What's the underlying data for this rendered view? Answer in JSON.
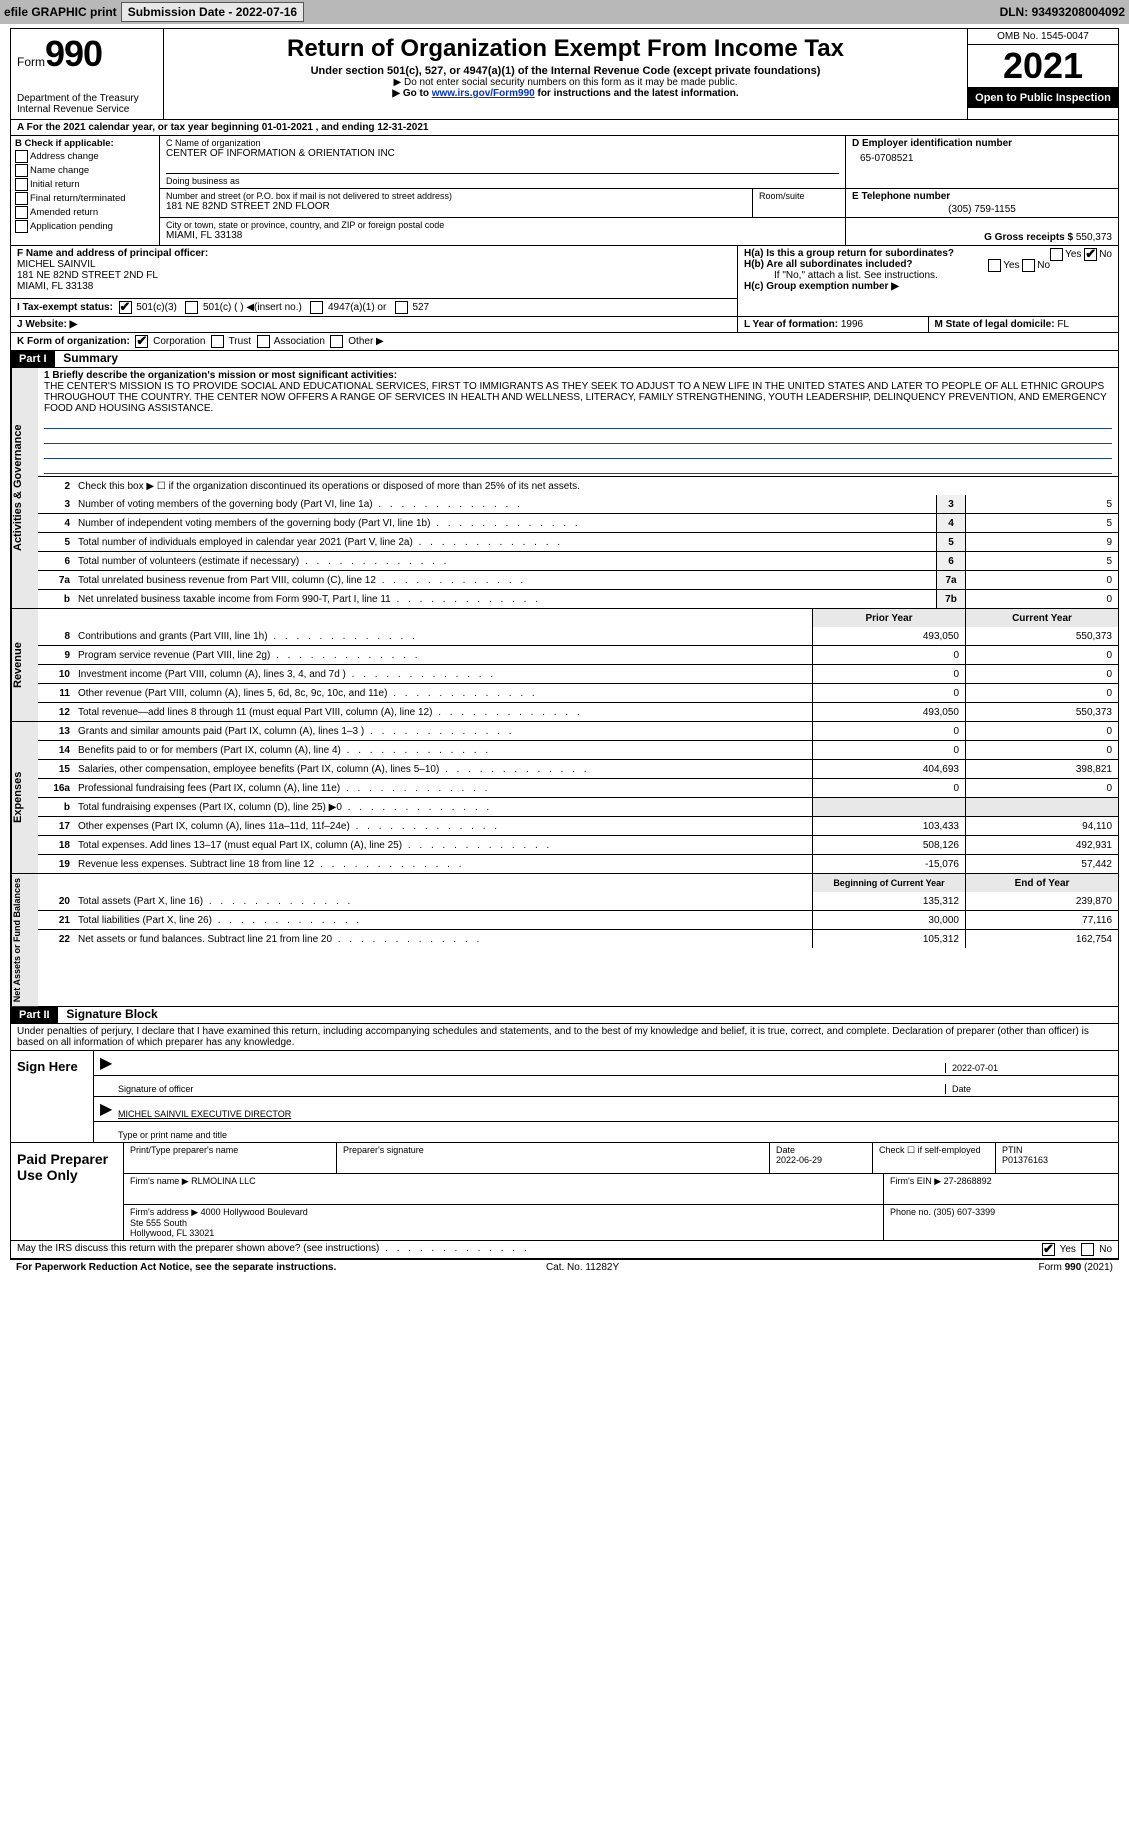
{
  "topbar": {
    "efile": "efile GRAPHIC print",
    "submission_label": "Submission Date - ",
    "submission_date": "2022-07-16",
    "dln_label": "DLN: ",
    "dln": "93493208004092"
  },
  "header": {
    "form_label": "Form",
    "form_no": "990",
    "dept": "Department of the Treasury\nInternal Revenue Service",
    "title": "Return of Organization Exempt From Income Tax",
    "subtitle": "Under section 501(c), 527, or 4947(a)(1) of the Internal Revenue Code (except private foundations)",
    "note1": "▶ Do not enter social security numbers on this form as it may be made public.",
    "note2_pre": "▶ Go to ",
    "note2_link": "www.irs.gov/Form990",
    "note2_post": " for instructions and the latest information.",
    "omb": "OMB No. 1545-0047",
    "year": "2021",
    "open": "Open to Public Inspection"
  },
  "row_a": "A For the 2021 calendar year, or tax year beginning 01-01-2021    , and ending 12-31-2021",
  "col_b": {
    "label": "B Check if applicable:",
    "items": [
      "Address change",
      "Name change",
      "Initial return",
      "Final return/terminated",
      "Amended return",
      "Application pending"
    ]
  },
  "col_c": {
    "name_lbl": "C Name of organization",
    "name": "CENTER OF INFORMATION & ORIENTATION INC",
    "dba_lbl": "Doing business as",
    "dba": "",
    "addr_lbl": "Number and street (or P.O. box if mail is not delivered to street address)",
    "addr": "181 NE 82ND STREET 2ND FLOOR",
    "room_lbl": "Room/suite",
    "city_lbl": "City or town, state or province, country, and ZIP or foreign postal code",
    "city": "MIAMI, FL  33138"
  },
  "col_d": {
    "lbl": "D Employer identification number",
    "val": "65-0708521"
  },
  "col_e": {
    "lbl": "E Telephone number",
    "val": "(305) 759-1155"
  },
  "col_g": {
    "lbl": "G Gross receipts $ ",
    "val": "550,373"
  },
  "col_f": {
    "lbl": "F  Name and address of principal officer:",
    "name": "MICHEL SAINVIL",
    "addr": "181 NE 82ND STREET 2ND FL\nMIAMI, FL  33138"
  },
  "col_h": {
    "ha": "H(a)  Is this a group return for subordinates?",
    "hb": "H(b)  Are all subordinates included?",
    "hb_note": "If \"No,\" attach a list. See instructions.",
    "hc": "H(c)  Group exemption number ▶",
    "yes": "Yes",
    "no": "No"
  },
  "row_i": {
    "lbl": "I   Tax-exempt status:",
    "opts": [
      "501(c)(3)",
      "501(c) (  ) ◀(insert no.)",
      "4947(a)(1) or",
      "527"
    ]
  },
  "row_j": {
    "lbl": "J   Website: ▶"
  },
  "row_k": {
    "lbl": "K Form of organization:",
    "opts": [
      "Corporation",
      "Trust",
      "Association",
      "Other ▶"
    ],
    "l_lbl": "L Year of formation: ",
    "l_val": "1996",
    "m_lbl": "M State of legal domicile: ",
    "m_val": "FL"
  },
  "part1": {
    "hdr": "Part I",
    "title": "Summary",
    "mission_lbl": "1  Briefly describe the organization's mission or most significant activities:",
    "mission": "THE CENTER'S MISSION IS TO PROVIDE SOCIAL AND EDUCATIONAL SERVICES, FIRST TO IMMIGRANTS AS THEY SEEK TO ADJUST TO A NEW LIFE IN THE UNITED STATES AND LATER TO PEOPLE OF ALL ETHNIC GROUPS THROUGHOUT THE COUNTRY. THE CENTER NOW OFFERS A RANGE OF SERVICES IN HEALTH AND WELLNESS, LITERACY, FAMILY STRENGTHENING, YOUTH LEADERSHIP, DELINQUENCY PREVENTION, AND EMERGENCY FOOD AND HOUSING ASSISTANCE.",
    "line2": "Check this box ▶ ☐  if the organization discontinued its operations or disposed of more than 25% of its net assets."
  },
  "sections": {
    "gov": "Activities & Governance",
    "rev": "Revenue",
    "exp": "Expenses",
    "net": "Net Assets or Fund Balances"
  },
  "gov_lines": [
    {
      "n": "3",
      "t": "Number of voting members of the governing body (Part VI, line 1a)",
      "b": "3",
      "v": "5"
    },
    {
      "n": "4",
      "t": "Number of independent voting members of the governing body (Part VI, line 1b)",
      "b": "4",
      "v": "5"
    },
    {
      "n": "5",
      "t": "Total number of individuals employed in calendar year 2021 (Part V, line 2a)",
      "b": "5",
      "v": "9"
    },
    {
      "n": "6",
      "t": "Total number of volunteers (estimate if necessary)",
      "b": "6",
      "v": "5"
    },
    {
      "n": "7a",
      "t": "Total unrelated business revenue from Part VIII, column (C), line 12",
      "b": "7a",
      "v": "0"
    },
    {
      "n": "b",
      "t": "Net unrelated business taxable income from Form 990-T, Part I, line 11",
      "b": "7b",
      "v": "0"
    }
  ],
  "two_col_hdr": {
    "p": "Prior Year",
    "c": "Current Year"
  },
  "rev_lines": [
    {
      "n": "8",
      "t": "Contributions and grants (Part VIII, line 1h)",
      "p": "493,050",
      "c": "550,373"
    },
    {
      "n": "9",
      "t": "Program service revenue (Part VIII, line 2g)",
      "p": "0",
      "c": "0"
    },
    {
      "n": "10",
      "t": "Investment income (Part VIII, column (A), lines 3, 4, and 7d )",
      "p": "0",
      "c": "0"
    },
    {
      "n": "11",
      "t": "Other revenue (Part VIII, column (A), lines 5, 6d, 8c, 9c, 10c, and 11e)",
      "p": "0",
      "c": "0"
    },
    {
      "n": "12",
      "t": "Total revenue—add lines 8 through 11 (must equal Part VIII, column (A), line 12)",
      "p": "493,050",
      "c": "550,373"
    }
  ],
  "exp_lines": [
    {
      "n": "13",
      "t": "Grants and similar amounts paid (Part IX, column (A), lines 1–3 )",
      "p": "0",
      "c": "0"
    },
    {
      "n": "14",
      "t": "Benefits paid to or for members (Part IX, column (A), line 4)",
      "p": "0",
      "c": "0"
    },
    {
      "n": "15",
      "t": "Salaries, other compensation, employee benefits (Part IX, column (A), lines 5–10)",
      "p": "404,693",
      "c": "398,821"
    },
    {
      "n": "16a",
      "t": "Professional fundraising fees (Part IX, column (A), line 11e)",
      "p": "0",
      "c": "0"
    },
    {
      "n": "b",
      "t": "Total fundraising expenses (Part IX, column (D), line 25) ▶0",
      "p": "",
      "c": "",
      "shade": true
    },
    {
      "n": "17",
      "t": "Other expenses (Part IX, column (A), lines 11a–11d, 11f–24e)",
      "p": "103,433",
      "c": "94,110"
    },
    {
      "n": "18",
      "t": "Total expenses. Add lines 13–17 (must equal Part IX, column (A), line 25)",
      "p": "508,126",
      "c": "492,931"
    },
    {
      "n": "19",
      "t": "Revenue less expenses. Subtract line 18 from line 12",
      "p": "-15,076",
      "c": "57,442"
    }
  ],
  "net_hdr": {
    "p": "Beginning of Current Year",
    "c": "End of Year"
  },
  "net_lines": [
    {
      "n": "20",
      "t": "Total assets (Part X, line 16)",
      "p": "135,312",
      "c": "239,870"
    },
    {
      "n": "21",
      "t": "Total liabilities (Part X, line 26)",
      "p": "30,000",
      "c": "77,116"
    },
    {
      "n": "22",
      "t": "Net assets or fund balances. Subtract line 21 from line 20",
      "p": "105,312",
      "c": "162,754"
    }
  ],
  "part2": {
    "hdr": "Part II",
    "title": "Signature Block",
    "perjury": "Under penalties of perjury, I declare that I have examined this return, including accompanying schedules and statements, and to the best of my knowledge and belief, it is true, correct, and complete. Declaration of preparer (other than officer) is based on all information of which preparer has any knowledge."
  },
  "sign": {
    "here": "Sign Here",
    "sig_lbl": "Signature of officer",
    "date": "2022-07-01",
    "date_lbl": "Date",
    "name": "MICHEL SAINVIL  EXECUTIVE DIRECTOR",
    "name_lbl": "Type or print name and title"
  },
  "paid": {
    "title": "Paid Preparer Use Only",
    "p_lbl": "Print/Type preparer's name",
    "p_name": "",
    "sig_lbl": "Preparer's signature",
    "date_lbl": "Date",
    "date": "2022-06-29",
    "check_lbl": "Check ☐ if self-employed",
    "ptin_lbl": "PTIN",
    "ptin": "P01376163",
    "firm_lbl": "Firm's name    ▶ ",
    "firm": "RLMOLINA LLC",
    "ein_lbl": "Firm's EIN ▶ ",
    "ein": "27-2868892",
    "addr_lbl": "Firm's address ▶ ",
    "addr": "4000 Hollywood Boulevard\nSte 555 South\nHollywood, FL  33021",
    "phone_lbl": "Phone no. ",
    "phone": "(305) 607-3399"
  },
  "may_irs": "May the IRS discuss this return with the preparer shown above? (see instructions)",
  "footer": {
    "left": "For Paperwork Reduction Act Notice, see the separate instructions.",
    "mid": "Cat. No. 11282Y",
    "right": "Form 990 (2021)"
  },
  "colors": {
    "topbar_bg": "#b8b8b8",
    "shade": "#e8e8e8",
    "link": "#0033cc",
    "rule": "#2040a0"
  }
}
